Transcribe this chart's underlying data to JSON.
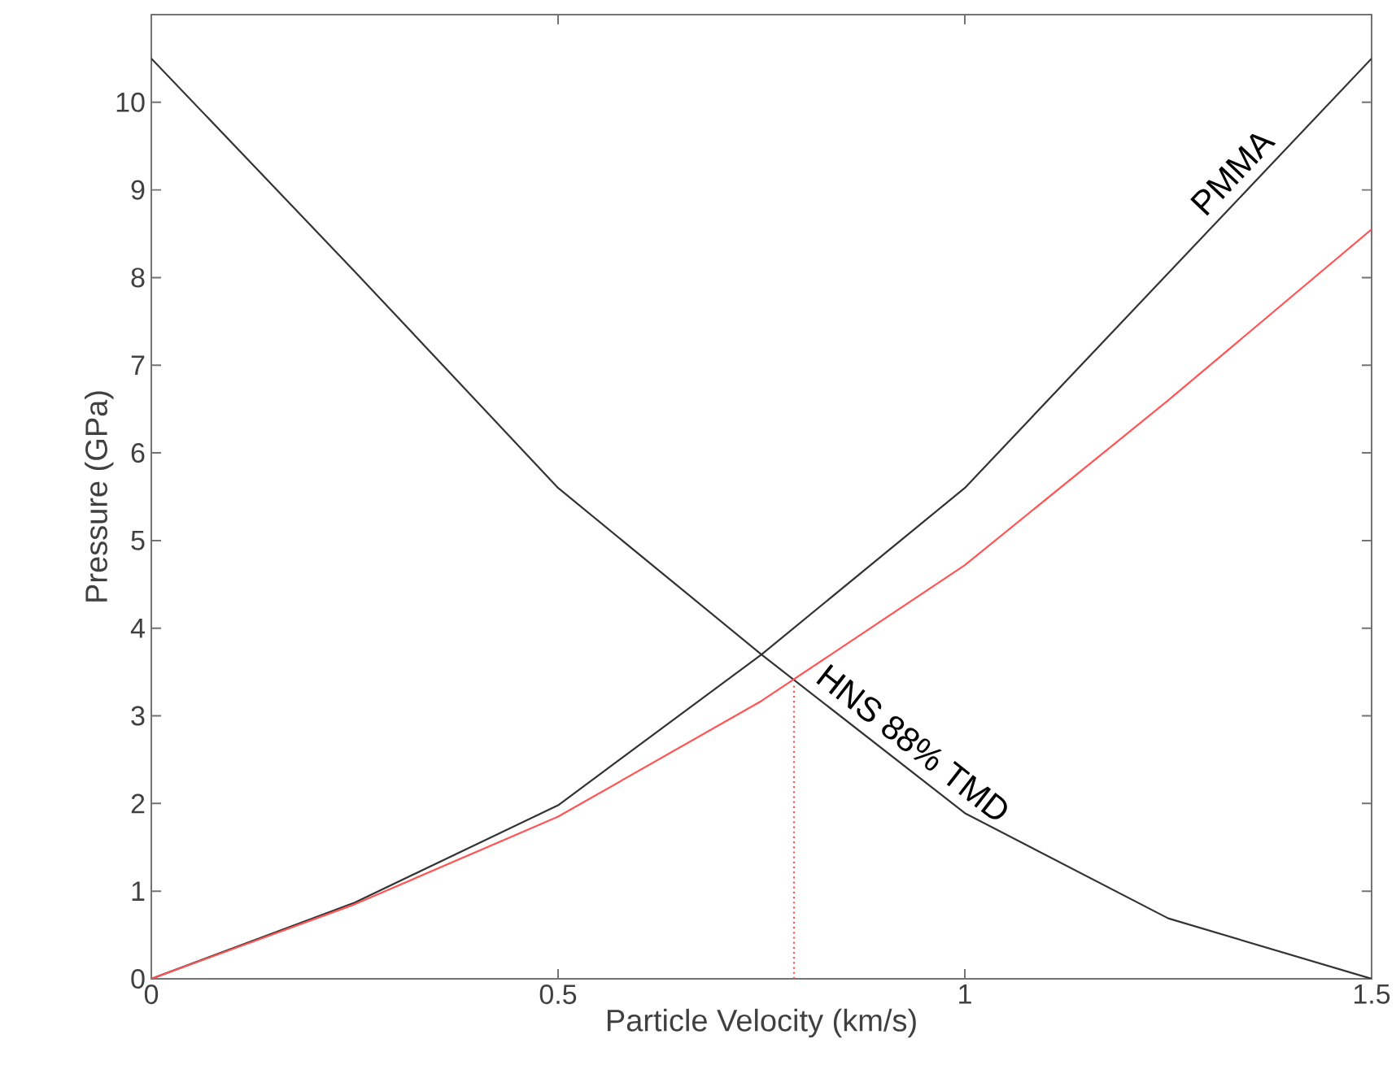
{
  "chart_data": {
    "type": "line",
    "xlabel": "Particle Velocity (km/s)",
    "ylabel": "Pressure (GPa)",
    "xlim": [
      0,
      1.5
    ],
    "ylim": [
      0,
      11
    ],
    "xticks": [
      0,
      0.5,
      1,
      1.5
    ],
    "yticks": [
      0,
      1,
      2,
      3,
      4,
      5,
      6,
      7,
      8,
      9,
      10
    ],
    "grid": false,
    "series": [
      {
        "name": "PMMA",
        "color": "#333333",
        "x": [
          0,
          0.25,
          0.5,
          0.75,
          1.0,
          1.25,
          1.5
        ],
        "values": [
          0,
          0.87,
          1.98,
          3.7,
          5.6,
          8.05,
          10.5
        ]
      },
      {
        "name": "HNS 88% TMD",
        "color": "#333333",
        "x": [
          0,
          0.25,
          0.5,
          0.75,
          1.0,
          1.25,
          1.5
        ],
        "values": [
          10.5,
          8.07,
          5.6,
          3.7,
          1.89,
          0.69,
          0
        ]
      },
      {
        "color": "#ff5555",
        "x": [
          0,
          0.25,
          0.5,
          0.75,
          1.0,
          1.25,
          1.5
        ],
        "values": [
          0,
          0.85,
          1.85,
          3.17,
          4.72,
          6.6,
          8.55
        ]
      },
      {
        "color": "#ff5555",
        "line_style": "dotted",
        "x": [
          0.79,
          0.79
        ],
        "values": [
          0,
          3.37
        ]
      }
    ]
  }
}
